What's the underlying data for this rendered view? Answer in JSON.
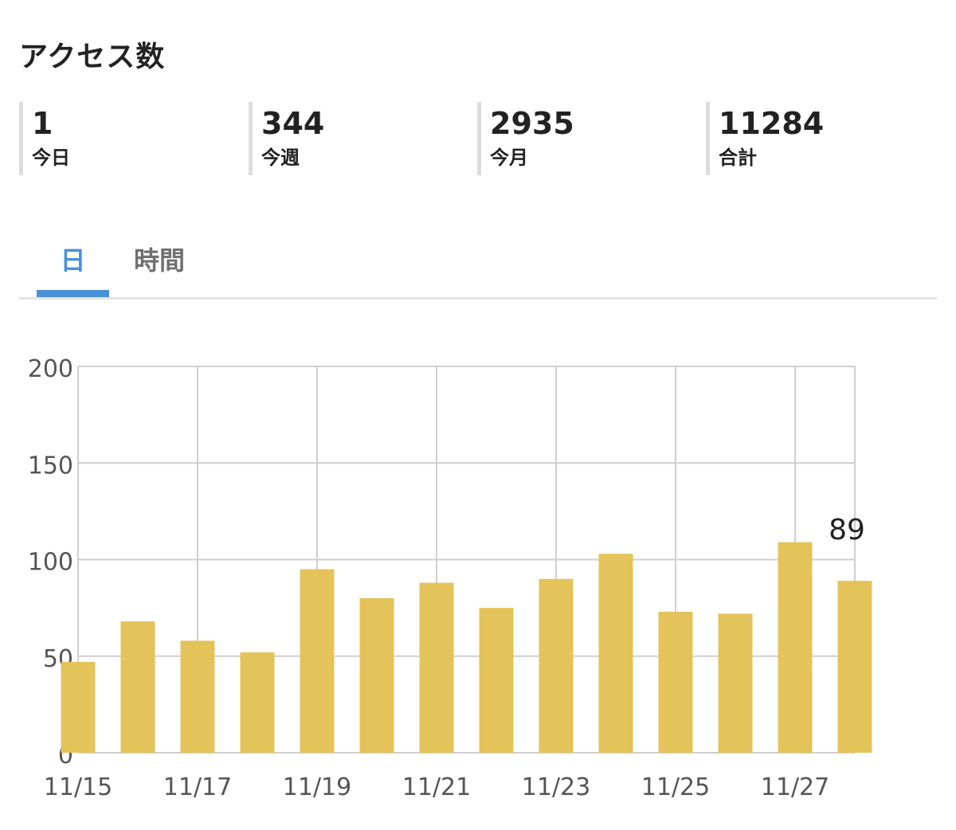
{
  "header": {
    "title": "アクセス数"
  },
  "stats": [
    {
      "value": "1",
      "label": "今日"
    },
    {
      "value": "344",
      "label": "今週"
    },
    {
      "value": "2935",
      "label": "今月"
    },
    {
      "value": "11284",
      "label": "合計"
    }
  ],
  "tabs": [
    {
      "label": "日",
      "active": true
    },
    {
      "label": "時間",
      "active": false
    }
  ],
  "colors": {
    "bar": "#e4c35a",
    "active_tab": "#4a90d9",
    "grid": "#cfcfcf"
  },
  "chart_data": {
    "type": "bar",
    "title": "",
    "xlabel": "",
    "ylabel": "",
    "categories": [
      "11/15",
      "11/16",
      "11/17",
      "11/18",
      "11/19",
      "11/20",
      "11/21",
      "11/22",
      "11/23",
      "11/24",
      "11/25",
      "11/26",
      "11/27",
      "11/28"
    ],
    "values": [
      47,
      68,
      58,
      52,
      95,
      80,
      88,
      75,
      90,
      103,
      73,
      72,
      109,
      89
    ],
    "x_tick_labels": [
      "11/15",
      "11/17",
      "11/19",
      "11/21",
      "11/23",
      "11/25",
      "11/27"
    ],
    "y_ticks": [
      0,
      50,
      100,
      150,
      200
    ],
    "ylim": [
      0,
      200
    ],
    "grid": true,
    "data_label": {
      "category": "11/28",
      "text": "89"
    }
  }
}
